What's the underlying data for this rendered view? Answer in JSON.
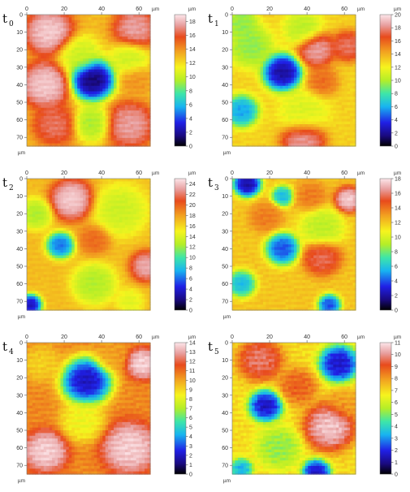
{
  "chart_data": [
    {
      "type": "heatmap",
      "label": "t",
      "subscript": "0",
      "x_ticks": [
        "0",
        "20",
        "40",
        "60"
      ],
      "y_ticks": [
        "0",
        "10",
        "20",
        "30",
        "40",
        "50",
        "60",
        "70"
      ],
      "x_unit": "µm",
      "y_unit": "µm",
      "colorbar_unit": "µm",
      "colorbar_ticks": [
        "0",
        "2",
        "4",
        "6",
        "8",
        "10",
        "12",
        "14",
        "16",
        "18"
      ],
      "zmin": 0,
      "zmax": 19,
      "xlim": [
        0,
        66
      ],
      "ylim": [
        0,
        75
      ],
      "base": 13,
      "features": [
        {
          "x": 35,
          "y": 37,
          "r": 8,
          "v": 0
        },
        {
          "x": 10,
          "y": 40,
          "r": 9,
          "v": 19
        },
        {
          "x": 12,
          "y": 10,
          "r": 9,
          "v": 19
        },
        {
          "x": 58,
          "y": 8,
          "r": 8,
          "v": 18
        },
        {
          "x": 55,
          "y": 63,
          "r": 9,
          "v": 18
        },
        {
          "x": 15,
          "y": 63,
          "r": 8,
          "v": 17
        },
        {
          "x": 58,
          "y": 37,
          "r": 6,
          "v": 14
        },
        {
          "x": 35,
          "y": 62,
          "r": 7,
          "v": 9
        },
        {
          "x": 28,
          "y": 23,
          "r": 8,
          "v": 10
        },
        {
          "x": 55,
          "y": 25,
          "r": 7,
          "v": 10
        }
      ]
    },
    {
      "type": "heatmap",
      "label": "t",
      "subscript": "1",
      "x_ticks": [
        "0",
        "20",
        "40",
        "60"
      ],
      "y_ticks": [
        "0",
        "10",
        "20",
        "30",
        "40",
        "50",
        "60",
        "70"
      ],
      "x_unit": "µm",
      "y_unit": "µm",
      "colorbar_unit": "µm",
      "colorbar_ticks": [
        "0",
        "2",
        "4",
        "6",
        "8",
        "10",
        "12",
        "14",
        "16",
        "18",
        "20"
      ],
      "zmin": 0,
      "zmax": 20,
      "xlim": [
        0,
        66
      ],
      "ylim": [
        0,
        75
      ],
      "base": 13,
      "features": [
        {
          "x": 27,
          "y": 33,
          "r": 7,
          "v": 1
        },
        {
          "x": 5,
          "y": 55,
          "r": 6,
          "v": 5
        },
        {
          "x": 10,
          "y": 18,
          "r": 8,
          "v": 9
        },
        {
          "x": 38,
          "y": 8,
          "r": 7,
          "v": 10
        },
        {
          "x": 38,
          "y": 56,
          "r": 9,
          "v": 11
        },
        {
          "x": 45,
          "y": 20,
          "r": 7,
          "v": 19
        },
        {
          "x": 62,
          "y": 18,
          "r": 6,
          "v": 18
        },
        {
          "x": 38,
          "y": 72,
          "r": 8,
          "v": 19
        },
        {
          "x": 48,
          "y": 38,
          "r": 6,
          "v": 16
        },
        {
          "x": 5,
          "y": 5,
          "r": 6,
          "v": 9
        }
      ]
    },
    {
      "type": "heatmap",
      "label": "t",
      "subscript": "2",
      "x_ticks": [
        "0",
        "20",
        "40",
        "60"
      ],
      "y_ticks": [
        "0",
        "10",
        "20",
        "30",
        "40",
        "50",
        "60",
        "70"
      ],
      "x_unit": "µm",
      "y_unit": "µm",
      "colorbar_unit": "µm",
      "colorbar_ticks": [
        "0",
        "2",
        "4",
        "6",
        "8",
        "10",
        "12",
        "14",
        "16",
        "18",
        "20",
        "22",
        "24"
      ],
      "zmin": 0,
      "zmax": 25,
      "xlim": [
        0,
        66
      ],
      "ylim": [
        0,
        75
      ],
      "base": 17,
      "features": [
        {
          "x": 18,
          "y": 38,
          "r": 5,
          "v": 5
        },
        {
          "x": 2,
          "y": 72,
          "r": 4,
          "v": 2
        },
        {
          "x": 24,
          "y": 12,
          "r": 8,
          "v": 25
        },
        {
          "x": 64,
          "y": 50,
          "r": 6,
          "v": 24
        },
        {
          "x": 50,
          "y": 18,
          "r": 10,
          "v": 13
        },
        {
          "x": 36,
          "y": 60,
          "r": 8,
          "v": 12
        },
        {
          "x": 5,
          "y": 20,
          "r": 6,
          "v": 12
        },
        {
          "x": 36,
          "y": 35,
          "r": 6,
          "v": 20
        },
        {
          "x": 55,
          "y": 70,
          "r": 5,
          "v": 14
        }
      ]
    },
    {
      "type": "heatmap",
      "label": "t",
      "subscript": "3",
      "x_ticks": [
        "0",
        "20",
        "40",
        "60"
      ],
      "y_ticks": [
        "0",
        "10",
        "20",
        "30",
        "40",
        "50",
        "60",
        "70"
      ],
      "x_unit": "µm",
      "y_unit": "µm",
      "colorbar_unit": "µm",
      "colorbar_ticks": [
        "0",
        "2",
        "4",
        "6",
        "8",
        "10",
        "12",
        "14",
        "16",
        "18"
      ],
      "zmin": 0,
      "zmax": 18,
      "xlim": [
        0,
        66
      ],
      "ylim": [
        0,
        75
      ],
      "base": 12,
      "features": [
        {
          "x": 8,
          "y": 3,
          "r": 5,
          "v": 1
        },
        {
          "x": 27,
          "y": 40,
          "r": 6,
          "v": 3
        },
        {
          "x": 27,
          "y": 10,
          "r": 4,
          "v": 5
        },
        {
          "x": 5,
          "y": 60,
          "r": 5,
          "v": 5
        },
        {
          "x": 52,
          "y": 72,
          "r": 4,
          "v": 3
        },
        {
          "x": 62,
          "y": 12,
          "r": 5,
          "v": 18
        },
        {
          "x": 48,
          "y": 45,
          "r": 7,
          "v": 16
        },
        {
          "x": 42,
          "y": 10,
          "r": 6,
          "v": 14
        },
        {
          "x": 48,
          "y": 28,
          "r": 8,
          "v": 9
        },
        {
          "x": 18,
          "y": 22,
          "r": 6,
          "v": 14
        }
      ]
    },
    {
      "type": "heatmap",
      "label": "t",
      "subscript": "4",
      "x_ticks": [
        "0",
        "20",
        "40",
        "60"
      ],
      "y_ticks": [
        "0",
        "10",
        "20",
        "30",
        "40",
        "50",
        "60",
        "70"
      ],
      "x_unit": "µm",
      "y_unit": "µm",
      "colorbar_unit": "µm",
      "colorbar_ticks": [
        "0",
        "1",
        "2",
        "3",
        "4",
        "5",
        "6",
        "7",
        "8",
        "9",
        "10",
        "11",
        "12",
        "13",
        "14"
      ],
      "zmin": 0,
      "zmax": 14,
      "xlim": [
        0,
        66
      ],
      "ylim": [
        0,
        75
      ],
      "base": 10.5,
      "features": [
        {
          "x": 32,
          "y": 22,
          "r": 9,
          "v": 1
        },
        {
          "x": 62,
          "y": 12,
          "r": 6,
          "v": 14
        },
        {
          "x": 55,
          "y": 60,
          "r": 10,
          "v": 14
        },
        {
          "x": 10,
          "y": 62,
          "r": 8,
          "v": 14
        },
        {
          "x": 8,
          "y": 12,
          "r": 7,
          "v": 9
        },
        {
          "x": 30,
          "y": 45,
          "r": 8,
          "v": 8
        },
        {
          "x": 45,
          "y": 8,
          "r": 6,
          "v": 10
        }
      ]
    },
    {
      "type": "heatmap",
      "label": "t",
      "subscript": "5",
      "x_ticks": [
        "0",
        "20",
        "40",
        "60"
      ],
      "y_ticks": [
        "0",
        "10",
        "20",
        "30",
        "40",
        "50",
        "60",
        "70"
      ],
      "x_unit": "µm",
      "y_unit": "µm",
      "colorbar_unit": "µm",
      "colorbar_ticks": [
        "0",
        "1",
        "2",
        "3",
        "4",
        "5",
        "6",
        "7",
        "8",
        "9",
        "10",
        "11"
      ],
      "zmin": 0,
      "zmax": 11,
      "xlim": [
        0,
        66
      ],
      "ylim": [
        0,
        75
      ],
      "base": 7,
      "features": [
        {
          "x": 57,
          "y": 12,
          "r": 7,
          "v": 1
        },
        {
          "x": 18,
          "y": 36,
          "r": 6,
          "v": 1
        },
        {
          "x": 45,
          "y": 74,
          "r": 5,
          "v": 1
        },
        {
          "x": 5,
          "y": 72,
          "r": 4,
          "v": 3
        },
        {
          "x": 15,
          "y": 10,
          "r": 8,
          "v": 10
        },
        {
          "x": 52,
          "y": 48,
          "r": 9,
          "v": 11
        },
        {
          "x": 35,
          "y": 25,
          "r": 7,
          "v": 9
        },
        {
          "x": 60,
          "y": 35,
          "r": 6,
          "v": 8
        },
        {
          "x": 25,
          "y": 60,
          "r": 8,
          "v": 5
        }
      ]
    }
  ]
}
